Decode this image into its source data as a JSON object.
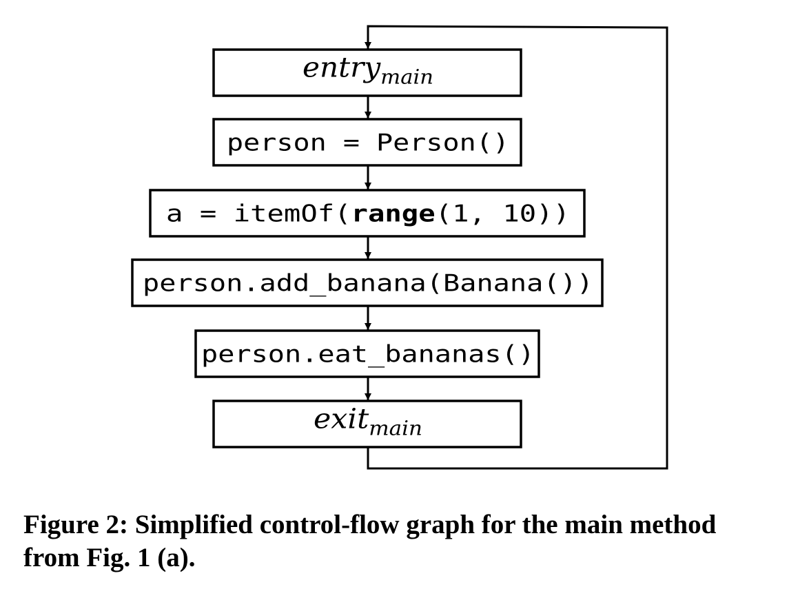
{
  "nodes": [
    {
      "id": "entry",
      "style": "math",
      "parts": [
        {
          "text": "entry"
        },
        {
          "text": "main",
          "sub": true
        }
      ]
    },
    {
      "id": "person-init",
      "style": "code",
      "parts": [
        {
          "text": "person = Person()"
        }
      ]
    },
    {
      "id": "a-assign",
      "style": "code",
      "parts": [
        {
          "text": "a = itemOf("
        },
        {
          "text": "range",
          "bold": true
        },
        {
          "text": "(1, 10))"
        }
      ]
    },
    {
      "id": "add-banana",
      "style": "code",
      "parts": [
        {
          "text": "person.add_banana(Banana())"
        }
      ]
    },
    {
      "id": "eat-bananas",
      "style": "code",
      "parts": [
        {
          "text": "person.eat_bananas()"
        }
      ]
    },
    {
      "id": "exit",
      "style": "math",
      "parts": [
        {
          "text": "exit"
        },
        {
          "text": "main",
          "sub": true
        }
      ]
    }
  ],
  "edges": [
    {
      "from": "entry",
      "to": "person-init"
    },
    {
      "from": "person-init",
      "to": "a-assign"
    },
    {
      "from": "a-assign",
      "to": "add-banana"
    },
    {
      "from": "add-banana",
      "to": "eat-bananas"
    },
    {
      "from": "eat-bananas",
      "to": "exit"
    },
    {
      "from": "exit",
      "to": "entry",
      "kind": "loop-back"
    }
  ],
  "caption": "Figure 2: Simplified control-flow graph for the main method\nfrom Fig. 1 (a)."
}
